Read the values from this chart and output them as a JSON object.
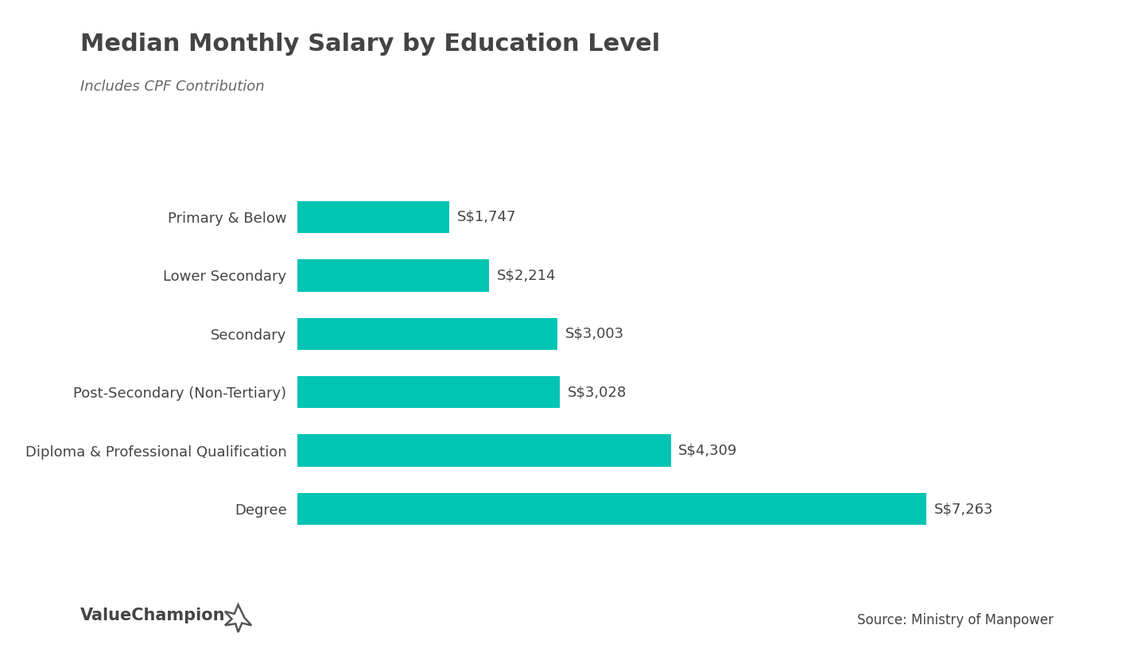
{
  "title": "Median Monthly Salary by Education Level",
  "subtitle": "Includes CPF Contribution",
  "categories": [
    "Primary & Below",
    "Lower Secondary",
    "Secondary",
    "Post-Secondary (Non-Tertiary)",
    "Diploma & Professional Qualification",
    "Degree"
  ],
  "values": [
    1747,
    2214,
    3003,
    3028,
    4309,
    7263
  ],
  "labels": [
    "S$1,747",
    "S$2,214",
    "S$3,003",
    "S$3,028",
    "S$4,309",
    "S$7,263"
  ],
  "bar_color": "#00C4B4",
  "background_color": "#FFFFFF",
  "title_fontsize": 22,
  "subtitle_fontsize": 13,
  "label_fontsize": 13,
  "category_fontsize": 13,
  "source_text": "Source: Ministry of Manpower",
  "brand_text": "ValueChampion",
  "xlim": [
    0,
    8200
  ]
}
